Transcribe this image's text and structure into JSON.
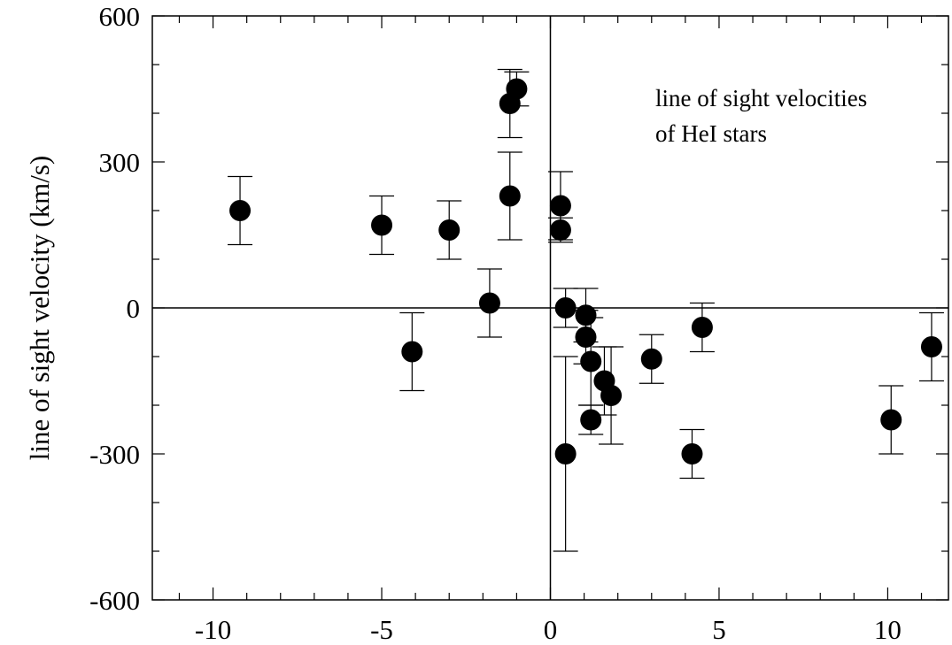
{
  "chart_data": {
    "type": "scatter",
    "ylabel": "line of sight velocity (km/s)",
    "xlabel": "",
    "annotation": [
      "line of sight velocities",
      "of HeI stars"
    ],
    "xlim": [
      -11.8,
      11.8
    ],
    "ylim": [
      -600,
      600
    ],
    "x_ticks": [
      -10,
      -5,
      0,
      5,
      10
    ],
    "y_ticks": [
      -600,
      -300,
      0,
      300,
      600
    ],
    "zero_lines": true,
    "grid": false,
    "marker_color": "#000000",
    "points": [
      {
        "x": -9.2,
        "y": 200,
        "err": 70
      },
      {
        "x": -5.0,
        "y": 170,
        "err": 60
      },
      {
        "x": -4.1,
        "y": -90,
        "err": 80
      },
      {
        "x": -3.0,
        "y": 160,
        "err": 60
      },
      {
        "x": -1.8,
        "y": 10,
        "err": 70
      },
      {
        "x": -1.2,
        "y": 420,
        "err": 70
      },
      {
        "x": -1.0,
        "y": 450,
        "err": 35
      },
      {
        "x": -1.2,
        "y": 230,
        "err": 90
      },
      {
        "x": 0.3,
        "y": 210,
        "err": 70
      },
      {
        "x": 0.3,
        "y": 160,
        "err": 25
      },
      {
        "x": 0.45,
        "y": 0,
        "err": 40
      },
      {
        "x": 0.45,
        "y": -300,
        "err": 200
      },
      {
        "x": 1.05,
        "y": -15,
        "err": 55
      },
      {
        "x": 1.05,
        "y": -60,
        "err": 55
      },
      {
        "x": 1.2,
        "y": -110,
        "err": 90
      },
      {
        "x": 1.2,
        "y": -230,
        "err": 30
      },
      {
        "x": 1.6,
        "y": -150,
        "err": 70
      },
      {
        "x": 1.8,
        "y": -180,
        "err": 100
      },
      {
        "x": 3.0,
        "y": -105,
        "err": 50
      },
      {
        "x": 4.2,
        "y": -300,
        "err": 50
      },
      {
        "x": 4.5,
        "y": -40,
        "err": 50
      },
      {
        "x": 10.1,
        "y": -230,
        "err": 70
      },
      {
        "x": 11.3,
        "y": -80,
        "err": 70
      }
    ]
  }
}
